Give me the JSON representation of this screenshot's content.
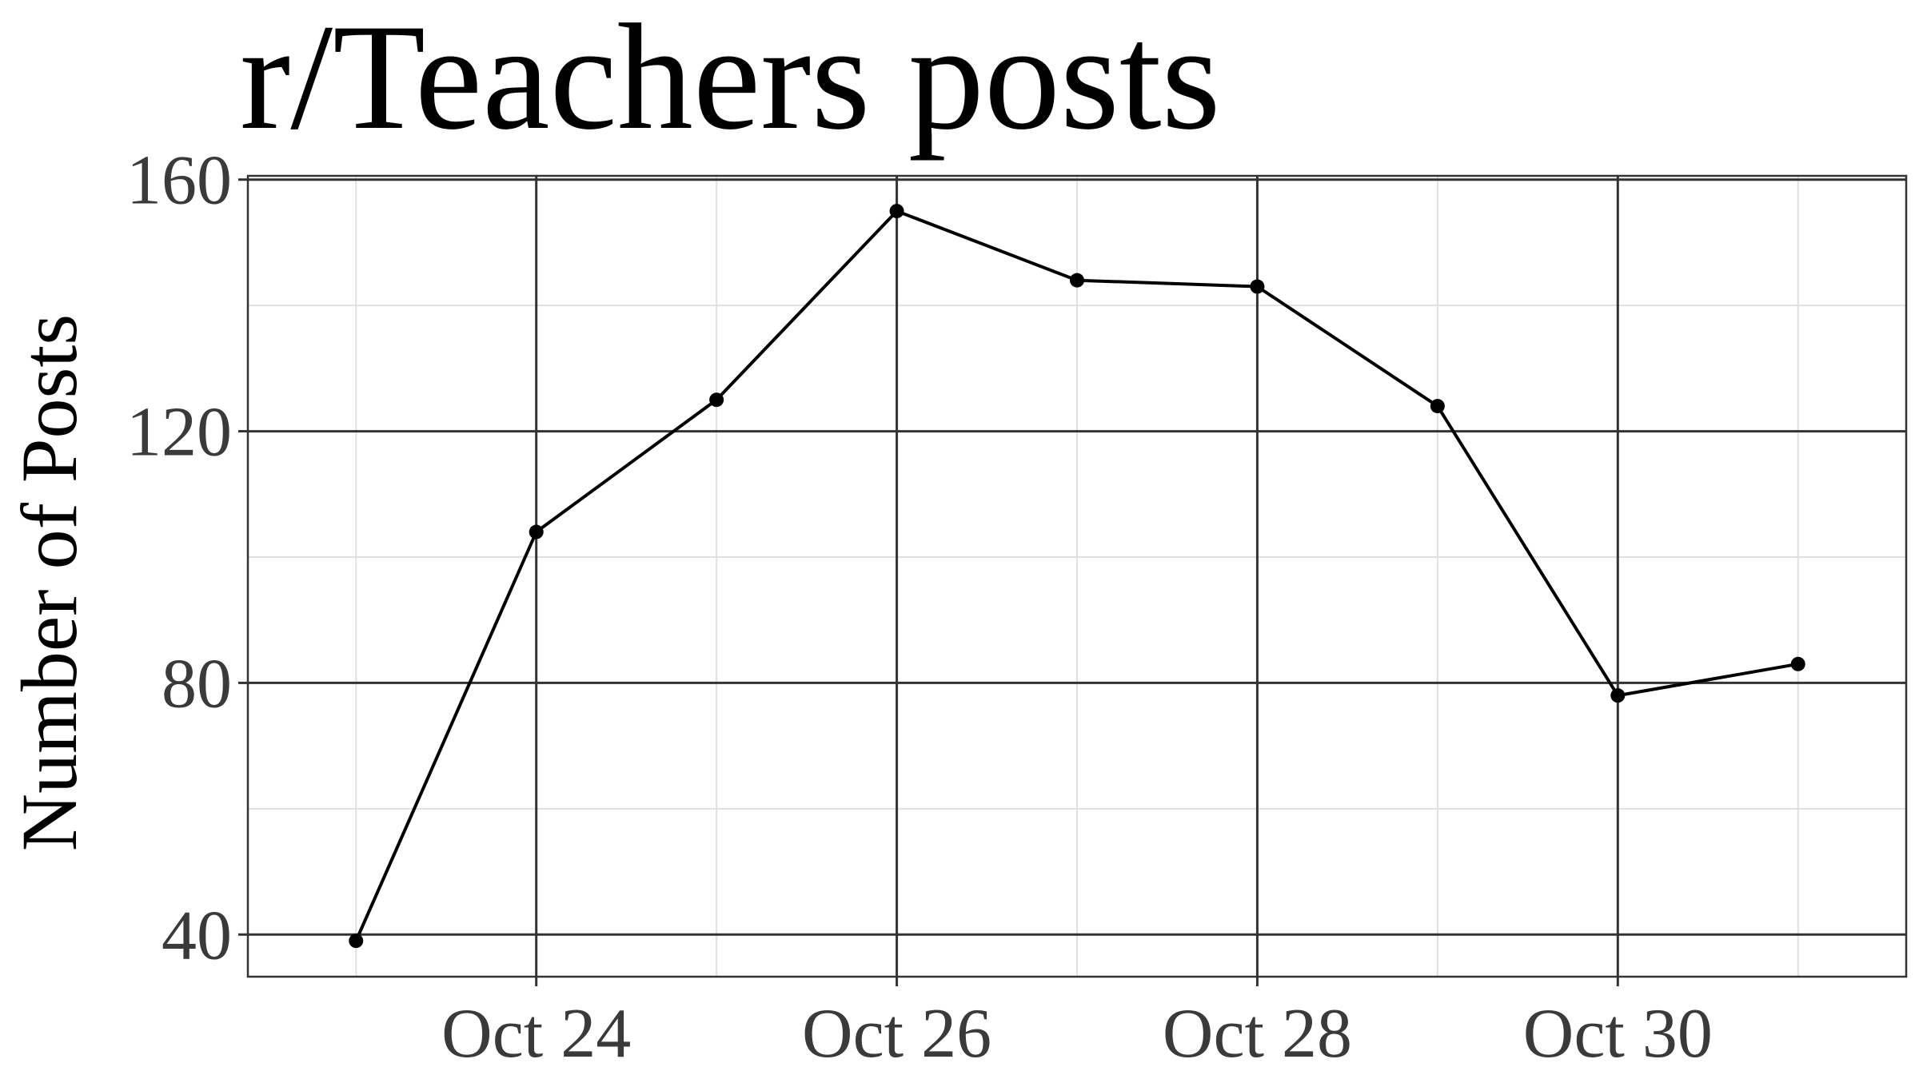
{
  "chart_data": {
    "type": "line",
    "title": "r/Teachers posts",
    "xlabel": "",
    "ylabel": "Number of Posts",
    "x": [
      "Oct 23",
      "Oct 24",
      "Oct 25",
      "Oct 26",
      "Oct 27",
      "Oct 28",
      "Oct 29",
      "Oct 30",
      "Oct 31"
    ],
    "series": [
      {
        "values": [
          39,
          104,
          125,
          155,
          144,
          143,
          124,
          78,
          83
        ]
      }
    ],
    "ylim": [
      33.3,
      160.6
    ],
    "yticks": [
      40,
      80,
      120,
      160
    ],
    "xticks": [
      {
        "label": "Oct 24",
        "at": "Oct 24"
      },
      {
        "label": "Oct 26",
        "at": "Oct 26"
      },
      {
        "label": "Oct 28",
        "at": "Oct 28"
      },
      {
        "label": "Oct 30",
        "at": "Oct 30"
      }
    ],
    "grid": true,
    "legend": "none",
    "colors": {
      "line": "#000000",
      "point": "#000000",
      "major_grid": "#333333",
      "minor_grid": "#e0e0e0",
      "tick_text": "#3a3a3a"
    }
  }
}
